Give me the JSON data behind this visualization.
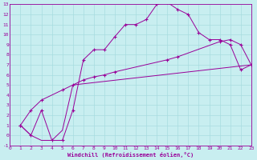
{
  "xlabel": "Windchill (Refroidissement éolien,°C)",
  "bg_color": "#c8eef0",
  "grid_color": "#a8dce0",
  "line_color": "#990099",
  "xlim": [
    0,
    23
  ],
  "ylim": [
    -1,
    13
  ],
  "xticks": [
    0,
    1,
    2,
    3,
    4,
    5,
    6,
    7,
    8,
    9,
    10,
    11,
    12,
    13,
    14,
    15,
    16,
    17,
    18,
    19,
    20,
    21,
    22,
    23
  ],
  "yticks": [
    -1,
    0,
    1,
    2,
    3,
    4,
    5,
    6,
    7,
    8,
    9,
    10,
    11,
    12,
    13
  ],
  "curve1_x": [
    1,
    2,
    3,
    4,
    5,
    6,
    7,
    8,
    9,
    10,
    11,
    12,
    13,
    14,
    15,
    16,
    17,
    18,
    19,
    20,
    21,
    22,
    23
  ],
  "curve1_y": [
    1,
    0,
    2.5,
    -0.5,
    -0.5,
    2.5,
    7.5,
    8.5,
    8.5,
    9.8,
    11.0,
    11.0,
    11.5,
    13.0,
    13.2,
    12.5,
    12.0,
    10.2,
    9.5,
    9.5,
    9.0,
    6.5,
    7.0
  ],
  "curve2_x": [
    1,
    2,
    3,
    5,
    6,
    7,
    8,
    9,
    10,
    15,
    16,
    20,
    21,
    22,
    23
  ],
  "curve2_y": [
    1,
    2.5,
    3.5,
    4.5,
    5.0,
    5.5,
    5.8,
    6.0,
    6.3,
    7.5,
    7.8,
    9.3,
    9.5,
    9.0,
    7.0
  ],
  "curve3_x": [
    1,
    2,
    3,
    4,
    5,
    6,
    23
  ],
  "curve3_y": [
    1,
    0,
    -0.5,
    -0.5,
    0.5,
    5.0,
    7.0
  ]
}
